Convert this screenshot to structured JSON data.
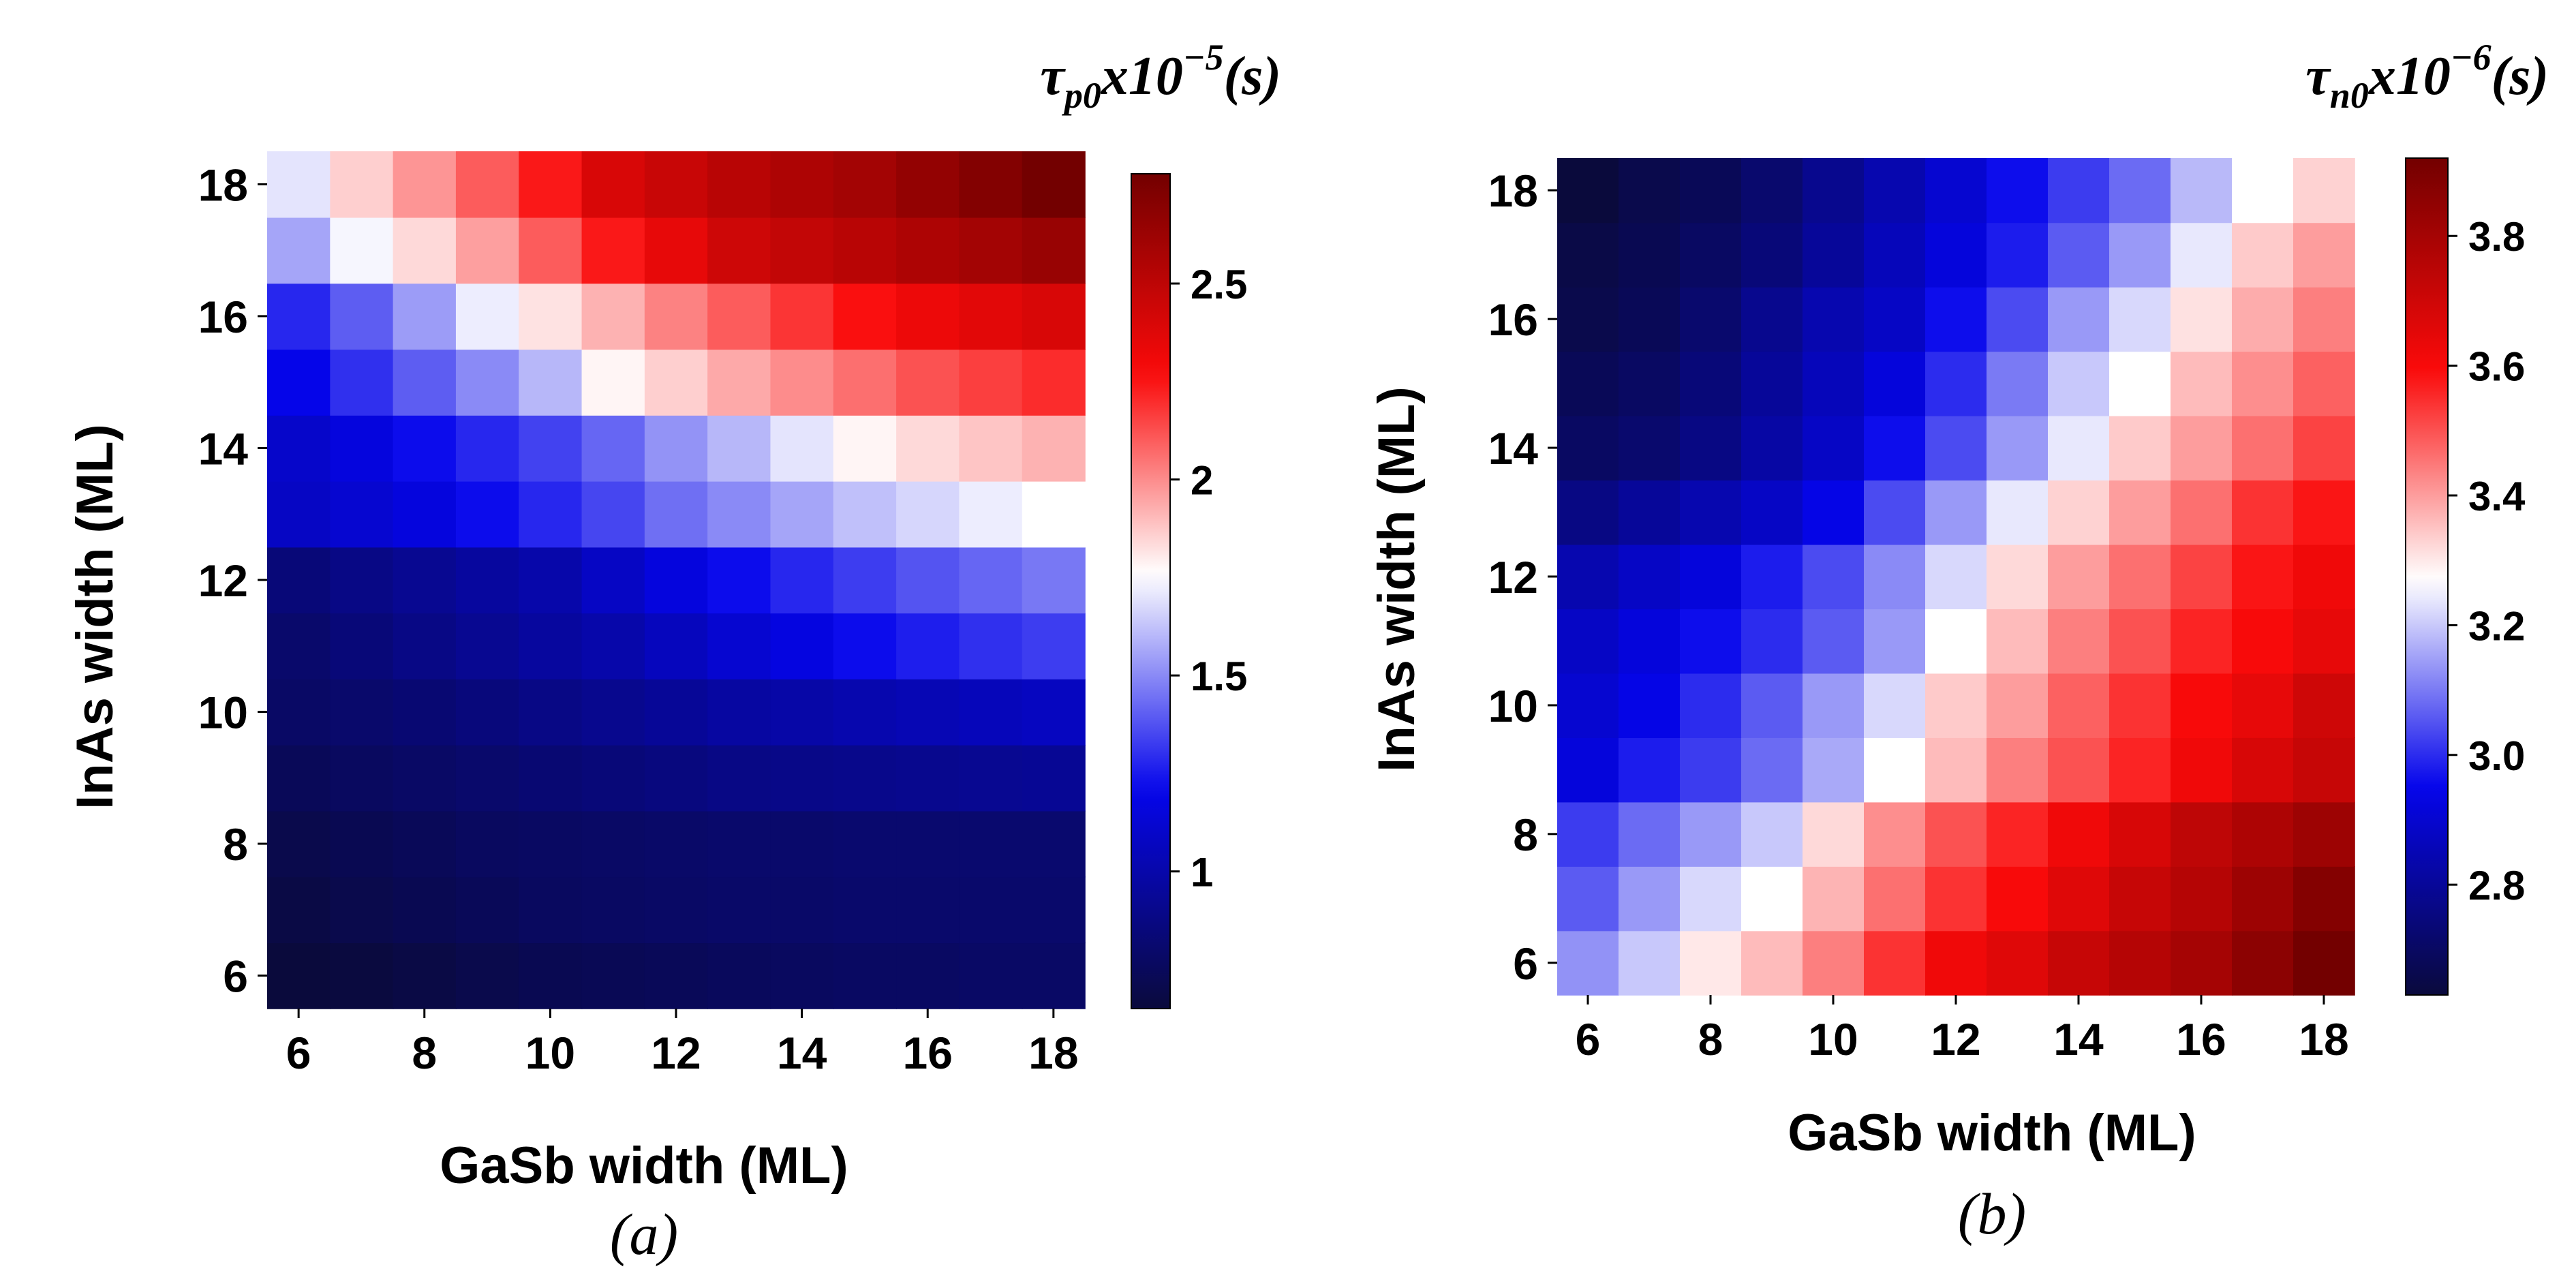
{
  "chart_data": [
    {
      "type": "heatmap",
      "panel": "(a)",
      "title_parts": [
        "τ",
        "p0",
        "x10",
        "−5",
        "(s)"
      ],
      "xlabel": "GaSb width (ML)",
      "ylabel": "InAs width (ML)",
      "x_values": [
        6,
        7,
        8,
        9,
        10,
        11,
        12,
        13,
        14,
        15,
        16,
        17,
        18
      ],
      "y_values": [
        6,
        7,
        8,
        9,
        10,
        11,
        12,
        13,
        14,
        15,
        16,
        17,
        18
      ],
      "x_ticks": [
        6,
        8,
        10,
        12,
        14,
        16,
        18
      ],
      "y_ticks": [
        6,
        8,
        10,
        12,
        14,
        16,
        18
      ],
      "x_tick_labels": [
        "6",
        "8",
        "10",
        "12",
        "14",
        "16",
        "18"
      ],
      "y_tick_labels": [
        "6",
        "8",
        "10",
        "12",
        "14",
        "16",
        "18"
      ],
      "colorbar": {
        "min": 0.65,
        "max": 2.78,
        "center": 1.76,
        "ticks": [
          1,
          1.5,
          2,
          2.5
        ],
        "tick_labels": [
          "1",
          "1.5",
          "2",
          "2.5"
        ]
      },
      "z_rows_description": "rows indexed by InAs width 6..18, columns by GaSb width 6..18",
      "z": [
        [
          0.65,
          0.66,
          0.68,
          0.7,
          0.72,
          0.73,
          0.74,
          0.75,
          0.76,
          0.77,
          0.77,
          0.78,
          0.78
        ],
        [
          0.68,
          0.7,
          0.72,
          0.74,
          0.76,
          0.77,
          0.78,
          0.79,
          0.79,
          0.8,
          0.8,
          0.8,
          0.8
        ],
        [
          0.7,
          0.72,
          0.74,
          0.76,
          0.77,
          0.78,
          0.79,
          0.8,
          0.8,
          0.81,
          0.81,
          0.81,
          0.81
        ],
        [
          0.74,
          0.76,
          0.78,
          0.8,
          0.82,
          0.84,
          0.86,
          0.88,
          0.89,
          0.9,
          0.91,
          0.92,
          0.93
        ],
        [
          0.78,
          0.8,
          0.82,
          0.85,
          0.88,
          0.91,
          0.94,
          0.97,
          0.99,
          1.01,
          1.03,
          1.05,
          1.07
        ],
        [
          0.8,
          0.84,
          0.88,
          0.92,
          0.96,
          1.0,
          1.06,
          1.12,
          1.17,
          1.22,
          1.26,
          1.3,
          1.33
        ],
        [
          0.84,
          0.88,
          0.92,
          0.96,
          1.0,
          1.08,
          1.16,
          1.22,
          1.28,
          1.33,
          1.38,
          1.42,
          1.46
        ],
        [
          1.08,
          1.12,
          1.16,
          1.22,
          1.28,
          1.35,
          1.44,
          1.5,
          1.56,
          1.62,
          1.67,
          1.72,
          1.76
        ],
        [
          1.1,
          1.16,
          1.22,
          1.28,
          1.34,
          1.42,
          1.52,
          1.6,
          1.7,
          1.78,
          1.84,
          1.88,
          1.92
        ],
        [
          1.2,
          1.3,
          1.4,
          1.5,
          1.6,
          1.78,
          1.86,
          1.94,
          2.0,
          2.06,
          2.12,
          2.16,
          2.2
        ],
        [
          1.28,
          1.4,
          1.54,
          1.72,
          1.82,
          1.92,
          2.02,
          2.1,
          2.18,
          2.26,
          2.32,
          2.36,
          2.4
        ],
        [
          1.56,
          1.74,
          1.84,
          1.96,
          2.1,
          2.24,
          2.34,
          2.44,
          2.48,
          2.52,
          2.56,
          2.6,
          2.64
        ],
        [
          1.7,
          1.86,
          1.98,
          2.1,
          2.24,
          2.4,
          2.46,
          2.52,
          2.56,
          2.6,
          2.66,
          2.72,
          2.78
        ]
      ]
    },
    {
      "type": "heatmap",
      "panel": "(b)",
      "title_parts": [
        "τ",
        "n0",
        "x10",
        "−6",
        "(s)"
      ],
      "xlabel": "GaSb width (ML)",
      "ylabel": "InAs width (ML)",
      "x_values": [
        6,
        7,
        8,
        9,
        10,
        11,
        12,
        13,
        14,
        15,
        16,
        17,
        18
      ],
      "y_values": [
        6,
        7,
        8,
        9,
        10,
        11,
        12,
        13,
        14,
        15,
        16,
        17,
        18
      ],
      "x_ticks": [
        6,
        8,
        10,
        12,
        14,
        16,
        18
      ],
      "y_ticks": [
        6,
        8,
        10,
        12,
        14,
        16,
        18
      ],
      "x_tick_labels": [
        "6",
        "8",
        "10",
        "12",
        "14",
        "16",
        "18"
      ],
      "y_tick_labels": [
        "6",
        "8",
        "10",
        "12",
        "14",
        "16",
        "18"
      ],
      "colorbar": {
        "min": 2.63,
        "max": 3.92,
        "center": 3.27,
        "ticks": [
          2.8,
          3.0,
          3.2,
          3.4,
          3.6,
          3.8
        ],
        "tick_labels": [
          "2.8",
          "3.0",
          "3.2",
          "3.4",
          "3.6",
          "3.8"
        ]
      },
      "z": [
        [
          3.13,
          3.2,
          3.3,
          3.36,
          3.44,
          3.54,
          3.62,
          3.66,
          3.72,
          3.76,
          3.8,
          3.86,
          3.92
        ],
        [
          3.06,
          3.14,
          3.22,
          3.27,
          3.37,
          3.46,
          3.54,
          3.6,
          3.66,
          3.72,
          3.76,
          3.82,
          3.88
        ],
        [
          3.02,
          3.08,
          3.14,
          3.2,
          3.32,
          3.42,
          3.5,
          3.56,
          3.62,
          3.68,
          3.74,
          3.78,
          3.82
        ],
        [
          2.92,
          2.98,
          3.02,
          3.08,
          3.16,
          3.27,
          3.36,
          3.44,
          3.5,
          3.56,
          3.62,
          3.68,
          3.72
        ],
        [
          2.9,
          2.94,
          3.0,
          3.06,
          3.14,
          3.22,
          3.34,
          3.4,
          3.48,
          3.54,
          3.6,
          3.64,
          3.7
        ],
        [
          2.88,
          2.92,
          2.96,
          3.0,
          3.06,
          3.14,
          3.27,
          3.36,
          3.44,
          3.5,
          3.56,
          3.6,
          3.64
        ],
        [
          2.84,
          2.88,
          2.92,
          2.98,
          3.04,
          3.12,
          3.22,
          3.32,
          3.4,
          3.46,
          3.52,
          3.58,
          3.62
        ],
        [
          2.76,
          2.8,
          2.84,
          2.88,
          2.94,
          3.04,
          3.14,
          3.24,
          3.33,
          3.4,
          3.46,
          3.54,
          3.58
        ],
        [
          2.7,
          2.72,
          2.76,
          2.82,
          2.88,
          2.96,
          3.04,
          3.14,
          3.24,
          3.34,
          3.4,
          3.46,
          3.52
        ],
        [
          2.68,
          2.7,
          2.74,
          2.8,
          2.86,
          2.92,
          3.0,
          3.1,
          3.2,
          3.27,
          3.36,
          3.42,
          3.48
        ],
        [
          2.66,
          2.68,
          2.72,
          2.78,
          2.84,
          2.88,
          2.96,
          3.04,
          3.14,
          3.22,
          3.31,
          3.38,
          3.44
        ],
        [
          2.65,
          2.67,
          2.7,
          2.74,
          2.8,
          2.86,
          2.92,
          2.98,
          3.06,
          3.14,
          3.24,
          3.34,
          3.4
        ],
        [
          2.63,
          2.66,
          2.68,
          2.72,
          2.78,
          2.84,
          2.9,
          2.96,
          3.02,
          3.08,
          3.18,
          3.27,
          3.33
        ]
      ]
    }
  ]
}
